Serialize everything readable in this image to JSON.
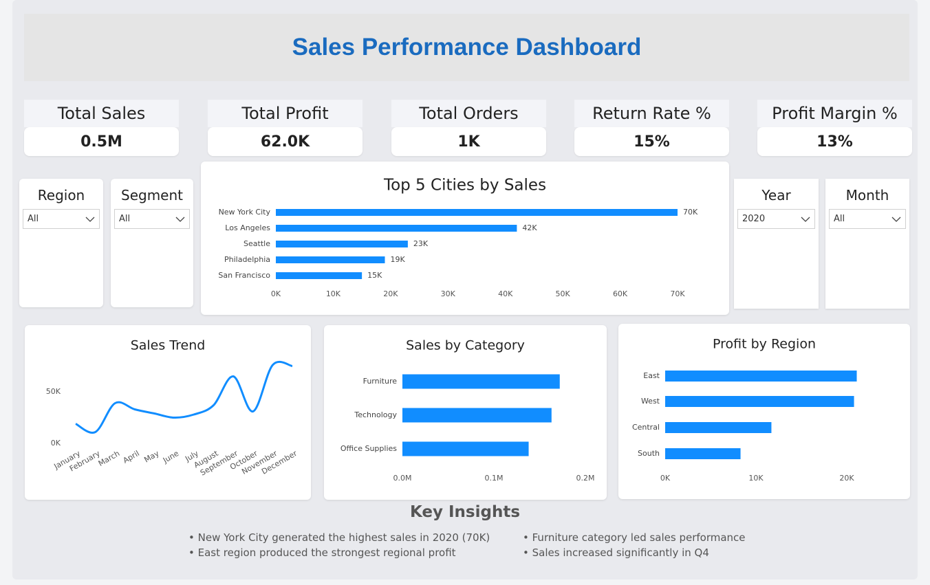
{
  "title": "Sales Performance Dashboard",
  "kpis": [
    {
      "label": "Total Sales",
      "value": "0.5M"
    },
    {
      "label": "Total Profit",
      "value": "62.0K"
    },
    {
      "label": "Total Orders",
      "value": "1K"
    },
    {
      "label": "Return Rate %",
      "value": "15%"
    },
    {
      "label": "Profit Margin %",
      "value": "13%"
    }
  ],
  "filters": [
    {
      "label": "Region",
      "value": "All"
    },
    {
      "label": "Segment",
      "value": "All"
    },
    {
      "label": "Year",
      "value": "2020"
    },
    {
      "label": "Month",
      "value": "All"
    }
  ],
  "chart_data": [
    {
      "type": "hbar",
      "title": "Top 5 Cities by Sales",
      "categories": [
        "New York City",
        "Los Angeles",
        "Seattle",
        "Philadelphia",
        "San Francisco"
      ],
      "values": [
        70000,
        42000,
        23000,
        19000,
        15000
      ],
      "value_labels": [
        "70K",
        "42K",
        "23K",
        "19K",
        "15K"
      ],
      "color": "#118dff",
      "xlim": [
        0,
        75000
      ],
      "xticks": [
        {
          "value": 0,
          "label": "0K"
        },
        {
          "value": 10000,
          "label": "10K"
        },
        {
          "value": 20000,
          "label": "20K"
        },
        {
          "value": 30000,
          "label": "30K"
        },
        {
          "value": 40000,
          "label": "40K"
        },
        {
          "value": 50000,
          "label": "50K"
        },
        {
          "value": 60000,
          "label": "60K"
        },
        {
          "value": 70000,
          "label": "70K"
        }
      ]
    },
    {
      "type": "line",
      "title": "Sales Trend",
      "categories": [
        "January",
        "February",
        "March",
        "April",
        "May",
        "June",
        "July",
        "August",
        "September",
        "October",
        "November",
        "December"
      ],
      "values": [
        19000,
        11000,
        39000,
        33000,
        29000,
        25000,
        28000,
        37000,
        65000,
        31000,
        76000,
        75000
      ],
      "color": "#118dff",
      "ylim": [
        0,
        80000
      ],
      "yticks": [
        {
          "value": 0,
          "label": "0K"
        },
        {
          "value": 50000,
          "label": "50K"
        }
      ]
    },
    {
      "type": "hbar",
      "title": "Sales by Category",
      "categories": [
        "Furniture",
        "Technology",
        "Office Supplies"
      ],
      "values": [
        172000,
        163000,
        138000
      ],
      "color": "#118dff",
      "xlim": [
        0,
        200000
      ],
      "xticks": [
        {
          "value": 0,
          "label": "0.0M"
        },
        {
          "value": 100000,
          "label": "0.1M"
        },
        {
          "value": 200000,
          "label": "0.2M"
        }
      ]
    },
    {
      "type": "hbar",
      "title": "Profit by Region",
      "categories": [
        "East",
        "West",
        "Central",
        "South"
      ],
      "values": [
        21100,
        20800,
        11700,
        8300
      ],
      "color": "#118dff",
      "xlim": [
        0,
        25000
      ],
      "xticks": [
        {
          "value": 0,
          "label": "0K"
        },
        {
          "value": 10000,
          "label": "10K"
        },
        {
          "value": 20000,
          "label": "20K"
        }
      ]
    }
  ],
  "insights": {
    "title": "Key Insights",
    "items": [
      "New York City generated the highest sales in 2020 (70K)",
      "Furniture category led sales performance",
      "East region produced the strongest regional profit",
      "Sales increased significantly in Q4"
    ]
  }
}
